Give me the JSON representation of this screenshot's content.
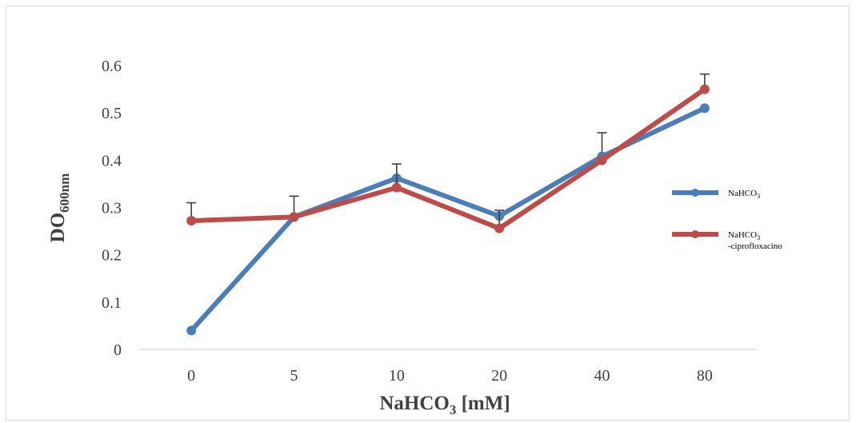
{
  "chart_data": {
    "type": "line",
    "categories": [
      "0",
      "5",
      "10",
      "20",
      "40",
      "80"
    ],
    "ylim": [
      0,
      0.6
    ],
    "yticks": [
      "0",
      "0.1",
      "0.2",
      "0.3",
      "0.4",
      "0.5",
      "0.6"
    ],
    "xlabel": {
      "main": "NaHCO",
      "sub": "3",
      "tail": " [mM]"
    },
    "ylabel": {
      "main": "DO",
      "sub": "600nm"
    },
    "grid": false,
    "legend_position": "right",
    "series": [
      {
        "name": "NaHCO3",
        "legend": {
          "main": "NaHCO",
          "sub": "3",
          "line2": ""
        },
        "color": "#4a7ebb",
        "values": [
          0.04,
          0.28,
          0.362,
          0.282,
          0.408,
          0.51
        ],
        "error": [
          0,
          0,
          0,
          0,
          0.05,
          0
        ]
      },
      {
        "name": "NaHCO3 -ciprofloxacino",
        "legend": {
          "main": "NaHCO",
          "sub": "3",
          "line2": "-ciprofloxacino"
        },
        "color": "#be4b48",
        "values": [
          0.272,
          0.28,
          0.342,
          0.256,
          0.4,
          0.55
        ],
        "error": [
          0.038,
          0.044,
          0.05,
          0.038,
          0,
          0.032
        ]
      }
    ]
  }
}
